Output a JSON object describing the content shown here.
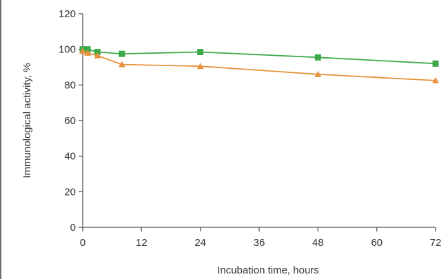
{
  "chart_data": {
    "type": "line",
    "title": "",
    "xlabel": "Incubation time, hours",
    "ylabel": "Immunological activity, %",
    "xlim": [
      0,
      72
    ],
    "ylim": [
      0,
      120
    ],
    "x_ticks": [
      0,
      12,
      24,
      36,
      48,
      60,
      72
    ],
    "y_ticks": [
      0,
      20,
      40,
      60,
      80,
      100,
      120
    ],
    "grid": false,
    "legend": "none",
    "series": [
      {
        "marker": "square",
        "color": "#3daa4a",
        "points": [
          {
            "x": 0,
            "y": 100
          },
          {
            "x": 1,
            "y": 100
          },
          {
            "x": 3,
            "y": 98.5
          },
          {
            "x": 8,
            "y": 97.5
          },
          {
            "x": 24,
            "y": 98.5
          },
          {
            "x": 48,
            "y": 95.5
          },
          {
            "x": 72,
            "y": 92
          }
        ]
      },
      {
        "marker": "triangle",
        "color": "#e8913c",
        "points": [
          {
            "x": 0,
            "y": 99
          },
          {
            "x": 1,
            "y": 98
          },
          {
            "x": 3,
            "y": 96.5
          },
          {
            "x": 8,
            "y": 91.5
          },
          {
            "x": 24,
            "y": 90.5
          },
          {
            "x": 48,
            "y": 86
          },
          {
            "x": 72,
            "y": 82.5
          }
        ]
      }
    ]
  }
}
